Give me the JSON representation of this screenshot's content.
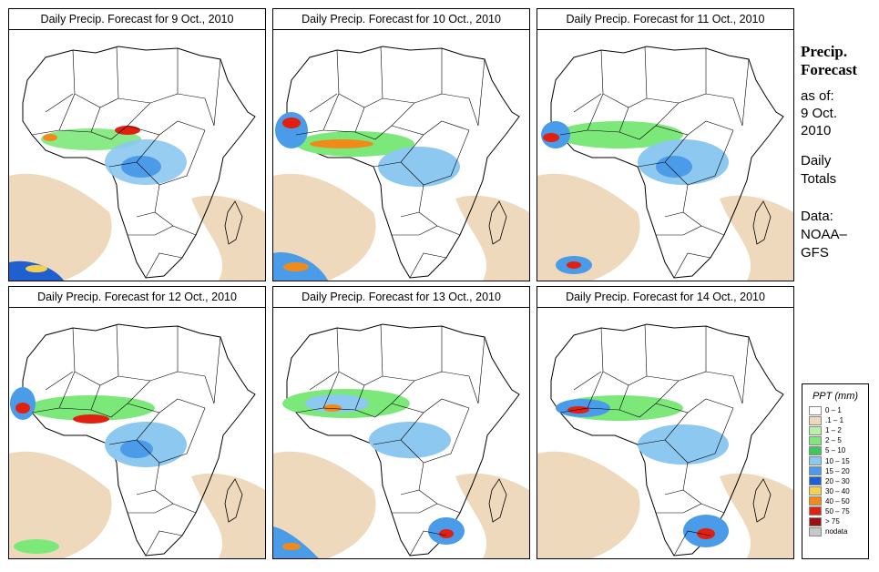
{
  "panels": [
    {
      "title": "Daily Precip. Forecast for  9 Oct., 2010"
    },
    {
      "title": "Daily Precip. Forecast for  10 Oct., 2010"
    },
    {
      "title": "Daily Precip. Forecast for  11 Oct., 2010"
    },
    {
      "title": "Daily Precip. Forecast for  12 Oct., 2010"
    },
    {
      "title": "Daily Precip. Forecast for  13 Oct., 2010"
    },
    {
      "title": "Daily Precip. Forecast for  14 Oct., 2010"
    }
  ],
  "sidebar": {
    "title_line1": "Precip.",
    "title_line2": "Forecast",
    "asof": "as of:",
    "date_line1": "9 Oct.",
    "date_line2": "2010",
    "daily_line1": "Daily",
    "daily_line2": "Totals",
    "data_line1": "Data:",
    "data_line2": "NOAA–",
    "data_line3": "GFS"
  },
  "legend": {
    "title": "PPT (mm)",
    "items": [
      {
        "label": "0 – 1",
        "color": "#ffffff"
      },
      {
        "label": ".1 – 1",
        "color": "#efd9bd"
      },
      {
        "label": "1 – 2",
        "color": "#b8f0a8"
      },
      {
        "label": "2 – 5",
        "color": "#7de87a"
      },
      {
        "label": "5 – 10",
        "color": "#3cc85a"
      },
      {
        "label": "10 – 15",
        "color": "#8cc8f0"
      },
      {
        "label": "15 – 20",
        "color": "#4a9be8"
      },
      {
        "label": "20 – 30",
        "color": "#1f5fd0"
      },
      {
        "label": "30 – 40",
        "color": "#f5d050"
      },
      {
        "label": "40 – 50",
        "color": "#f28a1a"
      },
      {
        "label": "50 – 75",
        "color": "#e02010"
      },
      {
        "label": "> 75",
        "color": "#9e1010"
      },
      {
        "label": "nodata",
        "color": "#c8c8c8"
      }
    ]
  }
}
